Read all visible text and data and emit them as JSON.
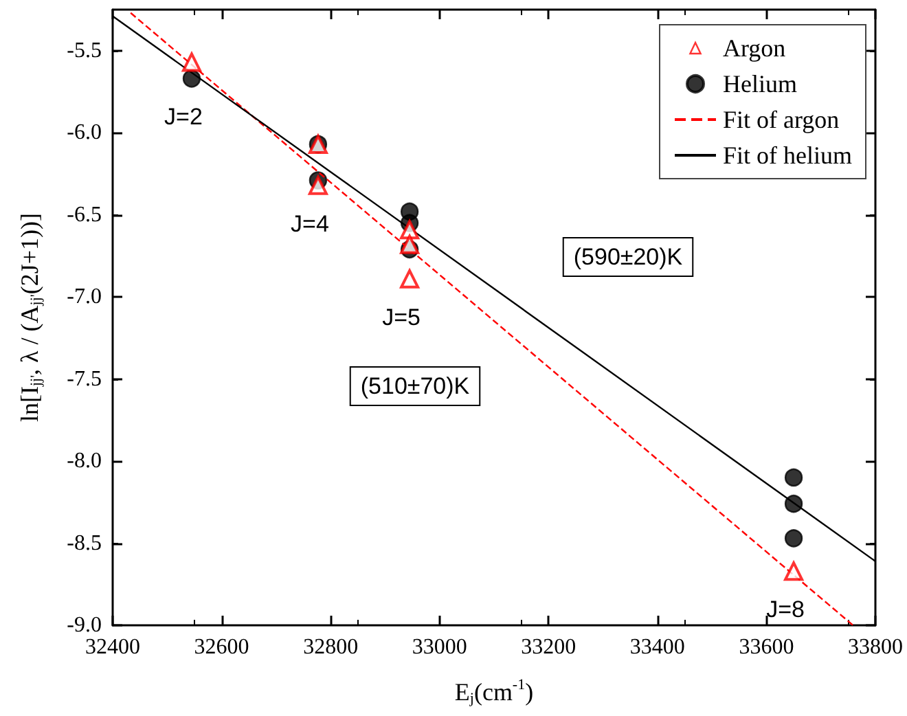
{
  "chart_data": {
    "type": "scatter",
    "xlabel": "E$_{j}$(cm$^{-1}$)",
    "ylabel": "ln[I$_{jj'}$, λ / (A$_{jj'}$(2J+1))]",
    "xlim": [
      32400,
      33800
    ],
    "xticks": [
      32400,
      32600,
      32800,
      33000,
      33200,
      33400,
      33600,
      33800
    ],
    "ylim": [
      -9.0,
      -5.25
    ],
    "yticks": [
      {
        "value": -9.0,
        "label": "-9.0"
      },
      {
        "value": -8.5,
        "label": "-8.5"
      },
      {
        "value": -8.0,
        "label": "-8.0"
      },
      {
        "value": -7.5,
        "label": "-7.5"
      },
      {
        "value": -7.0,
        "label": "-7.0"
      },
      {
        "value": -6.5,
        "label": "-6.5"
      },
      {
        "value": -6.0,
        "label": "-6.0"
      },
      {
        "value": -5.5,
        "label": "-5.5"
      }
    ],
    "grid": false,
    "legend": "top right",
    "series": [
      {
        "name": "Argon",
        "marker": "triangle",
        "color": "#ff0000",
        "x": [
          32545,
          32777,
          32777,
          32945,
          32945,
          32945,
          33650
        ],
        "values": [
          -5.57,
          -6.07,
          -6.32,
          -6.59,
          -6.68,
          -6.89,
          -8.67
        ]
      },
      {
        "name": "Helium",
        "marker": "circle",
        "color": "#000000",
        "x": [
          32545,
          32777,
          32777,
          32945,
          32945,
          32945,
          33650,
          33650,
          33650
        ],
        "values": [
          -5.67,
          -6.07,
          -6.29,
          -6.48,
          -6.55,
          -6.71,
          -8.1,
          -8.26,
          -8.47
        ]
      },
      {
        "name": "Fit of argon",
        "type": "line",
        "line_style": "dashed",
        "color": "#ff0000",
        "x": [
          32433,
          33759
        ],
        "values": [
          -5.27,
          -9.0
        ]
      },
      {
        "name": "Fit of helium",
        "type": "line",
        "line_style": "solid",
        "color": "#000000",
        "x": [
          32400,
          33800
        ],
        "values": [
          -5.29,
          -8.61
        ]
      }
    ],
    "annotations": [
      {
        "text": "J=2",
        "x": 32545,
        "y": -5.67
      },
      {
        "text": "J=4",
        "x": 32777,
        "y": -6.32
      },
      {
        "text": "J=5",
        "x": 32945,
        "y": -6.89
      },
      {
        "text": "J=8",
        "x": 33650,
        "y": -8.67
      },
      "(590±20)K",
      "(510±70)K"
    ]
  }
}
